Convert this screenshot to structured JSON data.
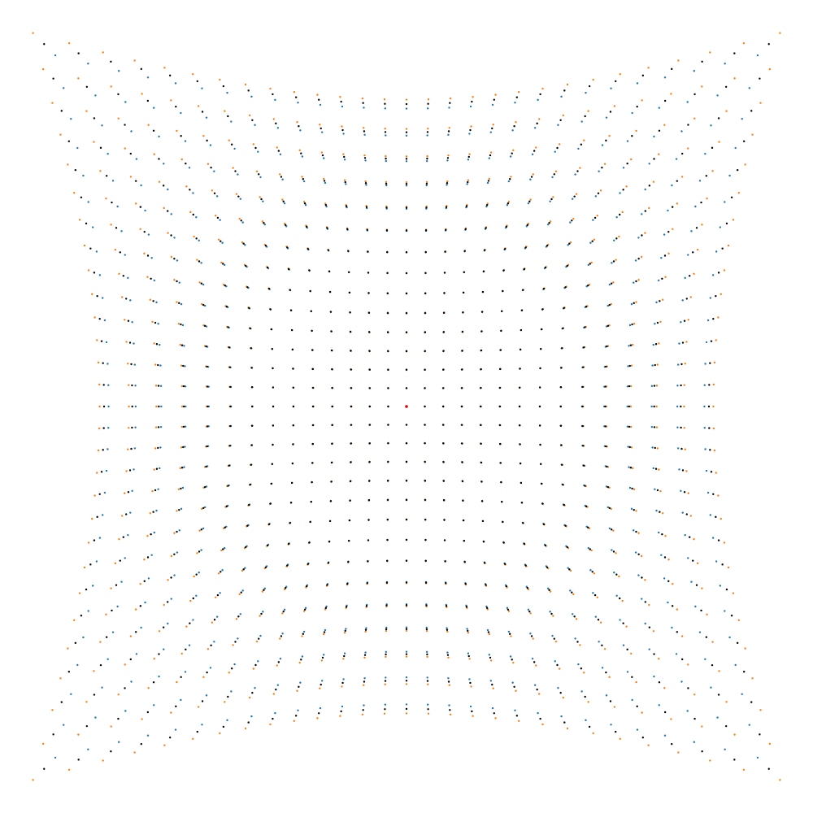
{
  "chart_data": {
    "type": "scatter",
    "title": "",
    "xlabel": "",
    "ylabel": "",
    "grid": false,
    "axes_visible": false,
    "legend": "none",
    "description_of_pattern": "",
    "grid_size": 29,
    "center": {
      "x": 0,
      "y": 0
    },
    "xlim": [
      -1.08,
      1.08
    ],
    "ylim": [
      -1.08,
      1.08
    ],
    "distortion": {
      "model": "pincushion",
      "k_primary": 0.16,
      "k_secondary": 0.12
    },
    "series": [
      {
        "name": "",
        "color": "#1f77b4",
        "marker_size": 1.2
      },
      {
        "name": "",
        "color": "#ff7f0e",
        "marker_size": 1.2
      },
      {
        "name": "",
        "color": "#000000",
        "marker_size": 1.2
      }
    ],
    "center_point": {
      "color": "#e00000",
      "x": 0,
      "y": 0
    }
  }
}
